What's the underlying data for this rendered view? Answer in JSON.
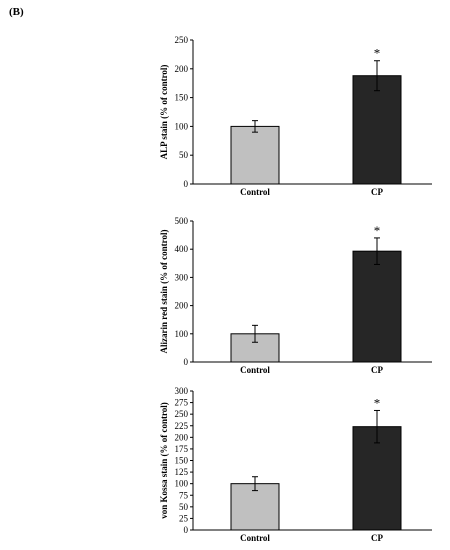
{
  "panel_label": "(B)",
  "chart_data": [
    {
      "type": "bar",
      "title": "",
      "xlabel": "",
      "ylabel": "ALP stain (% of control)",
      "categories": [
        "Control",
        "CP"
      ],
      "values": [
        100,
        188
      ],
      "errors": [
        10,
        26
      ],
      "significance": [
        "",
        "*"
      ],
      "colors": [
        "#c0c0c0",
        "#262626"
      ],
      "ylim": [
        0,
        250
      ],
      "yticks": [
        0,
        50,
        100,
        150,
        200,
        250
      ]
    },
    {
      "type": "bar",
      "title": "",
      "xlabel": "",
      "ylabel": "Alizarin red stain (% of control)",
      "categories": [
        "Control",
        "CP"
      ],
      "values": [
        100,
        393
      ],
      "errors": [
        30,
        47
      ],
      "significance": [
        "",
        "*"
      ],
      "colors": [
        "#c0c0c0",
        "#262626"
      ],
      "ylim": [
        0,
        500
      ],
      "yticks": [
        0,
        100,
        200,
        300,
        400,
        500
      ]
    },
    {
      "type": "bar",
      "title": "",
      "xlabel": "",
      "ylabel": "von Kossa stain (% of control)",
      "categories": [
        "Control",
        "CP"
      ],
      "values": [
        100,
        223
      ],
      "errors": [
        15,
        35
      ],
      "significance": [
        "",
        "*"
      ],
      "colors": [
        "#c0c0c0",
        "#262626"
      ],
      "ylim": [
        0,
        300
      ],
      "yticks": [
        0,
        25,
        50,
        75,
        100,
        125,
        150,
        175,
        200,
        225,
        250,
        275,
        300
      ]
    }
  ]
}
